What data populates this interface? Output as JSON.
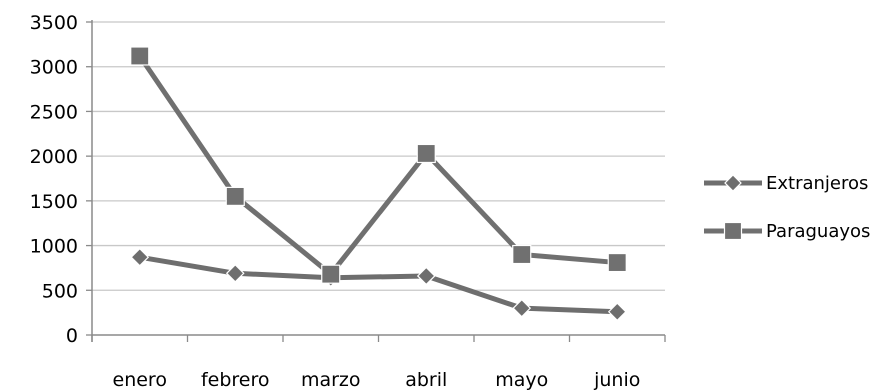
{
  "chart_data": {
    "type": "line",
    "title": "",
    "xlabel": "",
    "ylabel": "",
    "categories": [
      "enero",
      "febrero",
      "marzo",
      "abril",
      "mayo",
      "junio"
    ],
    "ylim": [
      0,
      3500
    ],
    "yticks": [
      0,
      500,
      1000,
      1500,
      2000,
      2500,
      3000,
      3500
    ],
    "grid": "horizontal",
    "legend_position": "right",
    "series": [
      {
        "name": "Extranjeros",
        "marker": "diamond",
        "color": "#6e6e6e",
        "values": [
          870,
          690,
          640,
          660,
          300,
          260
        ]
      },
      {
        "name": "Paraguayos",
        "marker": "square",
        "color": "#707070",
        "values": [
          3120,
          1550,
          680,
          2030,
          900,
          810
        ]
      }
    ],
    "colors": {
      "gridline": "#c8c8c8",
      "axis": "#8a8a8a"
    }
  }
}
